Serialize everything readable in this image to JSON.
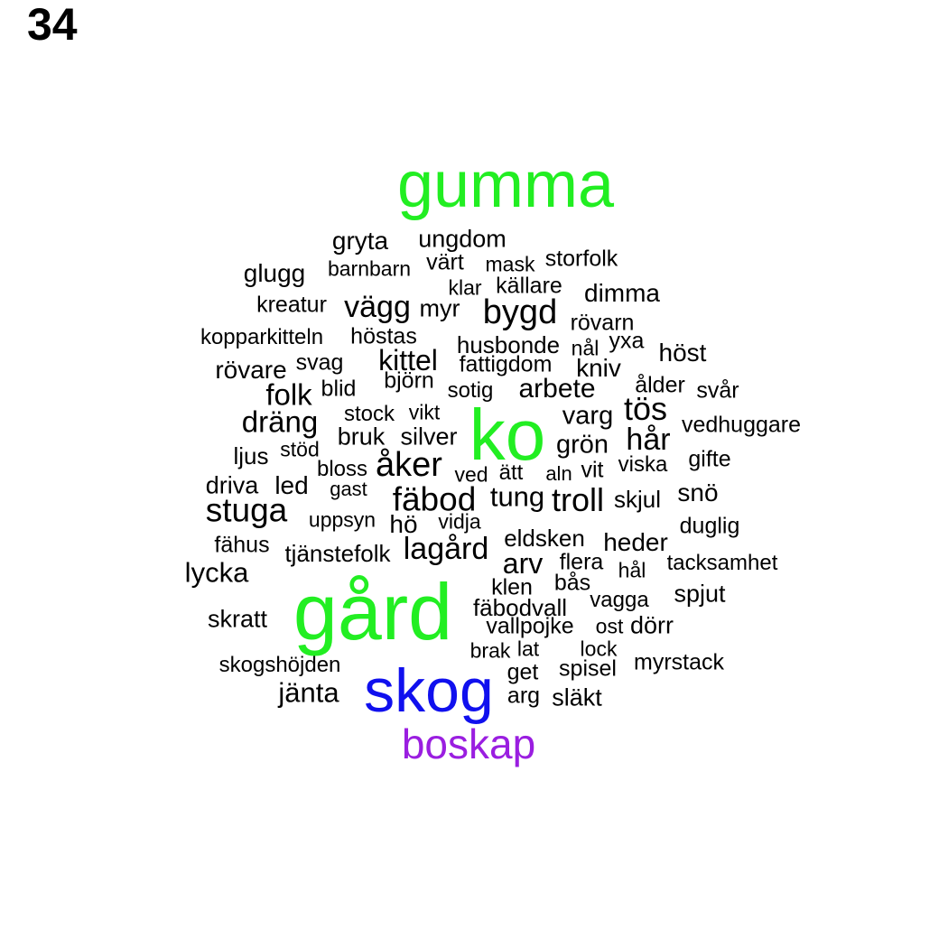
{
  "page_number": "34",
  "colors": {
    "default": "#000000",
    "green": "#22ee22",
    "blue": "#1010ee",
    "purple": "#9a1ee0"
  },
  "words": [
    {
      "text": "gumma",
      "weight": 0.9,
      "color": "green"
    },
    {
      "text": "ko",
      "weight": 1.0,
      "color": "green"
    },
    {
      "text": "gård",
      "weight": 1.0,
      "color": "green"
    },
    {
      "text": "skog",
      "weight": 0.85,
      "color": "blue"
    },
    {
      "text": "boskap",
      "weight": 0.55,
      "color": "purple"
    },
    {
      "text": "gryta",
      "weight": 0.3
    },
    {
      "text": "ungdom",
      "weight": 0.28
    },
    {
      "text": "glugg",
      "weight": 0.28
    },
    {
      "text": "barnbarn",
      "weight": 0.24
    },
    {
      "text": "värt",
      "weight": 0.26
    },
    {
      "text": "mask",
      "weight": 0.23
    },
    {
      "text": "storfolk",
      "weight": 0.25
    },
    {
      "text": "klar",
      "weight": 0.23
    },
    {
      "text": "källare",
      "weight": 0.25
    },
    {
      "text": "dimma",
      "weight": 0.3
    },
    {
      "text": "kreatur",
      "weight": 0.25
    },
    {
      "text": "vägg",
      "weight": 0.36
    },
    {
      "text": "myr",
      "weight": 0.28
    },
    {
      "text": "bygd",
      "weight": 0.4
    },
    {
      "text": "rövarn",
      "weight": 0.25
    },
    {
      "text": "kopparkitteln",
      "weight": 0.24
    },
    {
      "text": "höstas",
      "weight": 0.25
    },
    {
      "text": "husbonde",
      "weight": 0.27
    },
    {
      "text": "nål",
      "weight": 0.23
    },
    {
      "text": "yxa",
      "weight": 0.26
    },
    {
      "text": "höst",
      "weight": 0.3
    },
    {
      "text": "rövare",
      "weight": 0.29
    },
    {
      "text": "svag",
      "weight": 0.25
    },
    {
      "text": "kittel",
      "weight": 0.33
    },
    {
      "text": "fattigdom",
      "weight": 0.25
    },
    {
      "text": "kniv",
      "weight": 0.29
    },
    {
      "text": "björn",
      "weight": 0.25
    },
    {
      "text": "ålder",
      "weight": 0.26
    },
    {
      "text": "blid",
      "weight": 0.25
    },
    {
      "text": "sotig",
      "weight": 0.24
    },
    {
      "text": "arbete",
      "weight": 0.31
    },
    {
      "text": "svår",
      "weight": 0.26
    },
    {
      "text": "folk",
      "weight": 0.34
    },
    {
      "text": "tös",
      "weight": 0.37
    },
    {
      "text": "varg",
      "weight": 0.3
    },
    {
      "text": "dräng",
      "weight": 0.34
    },
    {
      "text": "stock",
      "weight": 0.24
    },
    {
      "text": "vikt",
      "weight": 0.23
    },
    {
      "text": "vedhuggare",
      "weight": 0.26
    },
    {
      "text": "bruk",
      "weight": 0.28
    },
    {
      "text": "silver",
      "weight": 0.28
    },
    {
      "text": "hår",
      "weight": 0.35
    },
    {
      "text": "grön",
      "weight": 0.3
    },
    {
      "text": "ljus",
      "weight": 0.26
    },
    {
      "text": "stöd",
      "weight": 0.23
    },
    {
      "text": "gifte",
      "weight": 0.25
    },
    {
      "text": "åker",
      "weight": 0.39
    },
    {
      "text": "bloss",
      "weight": 0.24
    },
    {
      "text": "viska",
      "weight": 0.24
    },
    {
      "text": "ved",
      "weight": 0.24
    },
    {
      "text": "ätt",
      "weight": 0.24
    },
    {
      "text": "aln",
      "weight": 0.22
    },
    {
      "text": "vit",
      "weight": 0.25
    },
    {
      "text": "driva",
      "weight": 0.27
    },
    {
      "text": "led",
      "weight": 0.28
    },
    {
      "text": "gast",
      "weight": 0.22
    },
    {
      "text": "fäbod",
      "weight": 0.38
    },
    {
      "text": "tung",
      "weight": 0.32
    },
    {
      "text": "troll",
      "weight": 0.37
    },
    {
      "text": "skjul",
      "weight": 0.26
    },
    {
      "text": "snö",
      "weight": 0.28
    },
    {
      "text": "stuga",
      "weight": 0.38
    },
    {
      "text": "uppsyn",
      "weight": 0.23
    },
    {
      "text": "hö",
      "weight": 0.28
    },
    {
      "text": "vidja",
      "weight": 0.23
    },
    {
      "text": "duglig",
      "weight": 0.25
    },
    {
      "text": "fähus",
      "weight": 0.25
    },
    {
      "text": "eldsken",
      "weight": 0.27
    },
    {
      "text": "lagård",
      "weight": 0.35
    },
    {
      "text": "heder",
      "weight": 0.29
    },
    {
      "text": "tjänstefolk",
      "weight": 0.27
    },
    {
      "text": "lycka",
      "weight": 0.32
    },
    {
      "text": "arv",
      "weight": 0.33
    },
    {
      "text": "flera",
      "weight": 0.25
    },
    {
      "text": "hål",
      "weight": 0.23
    },
    {
      "text": "tacksamhet",
      "weight": 0.25
    },
    {
      "text": "klen",
      "weight": 0.25
    },
    {
      "text": "bås",
      "weight": 0.25
    },
    {
      "text": "spjut",
      "weight": 0.28
    },
    {
      "text": "vagga",
      "weight": 0.25
    },
    {
      "text": "fäbodvall",
      "weight": 0.27
    },
    {
      "text": "skratt",
      "weight": 0.27
    },
    {
      "text": "ost",
      "weight": 0.23
    },
    {
      "text": "dörr",
      "weight": 0.28
    },
    {
      "text": "vallpojke",
      "weight": 0.26
    },
    {
      "text": "lock",
      "weight": 0.24
    },
    {
      "text": "brak",
      "weight": 0.24
    },
    {
      "text": "lat",
      "weight": 0.24
    },
    {
      "text": "skogshöjden",
      "weight": 0.25
    },
    {
      "text": "myrstack",
      "weight": 0.25
    },
    {
      "text": "get",
      "weight": 0.25
    },
    {
      "text": "spisel",
      "weight": 0.25
    },
    {
      "text": "jänta",
      "weight": 0.32
    },
    {
      "text": "arg",
      "weight": 0.25
    },
    {
      "text": "släkt",
      "weight": 0.27
    }
  ]
}
